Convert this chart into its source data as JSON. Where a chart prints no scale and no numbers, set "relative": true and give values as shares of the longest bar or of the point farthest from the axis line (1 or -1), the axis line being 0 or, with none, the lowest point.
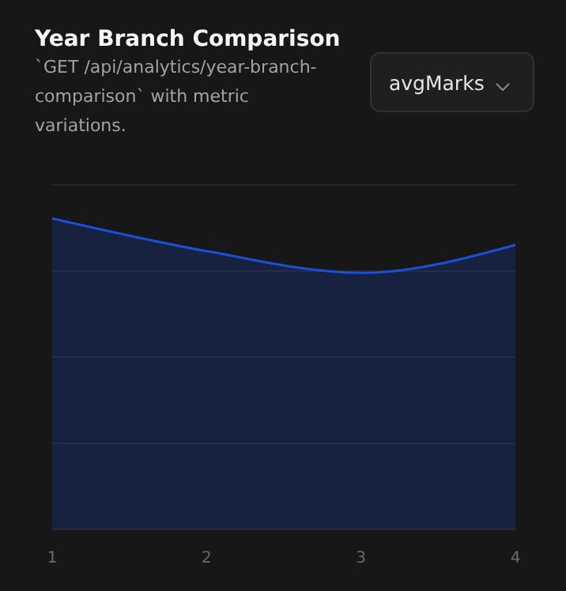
{
  "chart_data": {
    "type": "area",
    "title": "Year Branch Comparison",
    "subtitle": "`GET /api/analytics/year-branch-comparison` with metric variations.",
    "annotations": [
      "avgMarks"
    ],
    "categories": [
      "1",
      "2",
      "3",
      "4"
    ],
    "relative": true,
    "values": [
      1,
      0.895,
      0.825,
      0.915
    ],
    "color": "#1d4ed8",
    "grid": "y"
  }
}
